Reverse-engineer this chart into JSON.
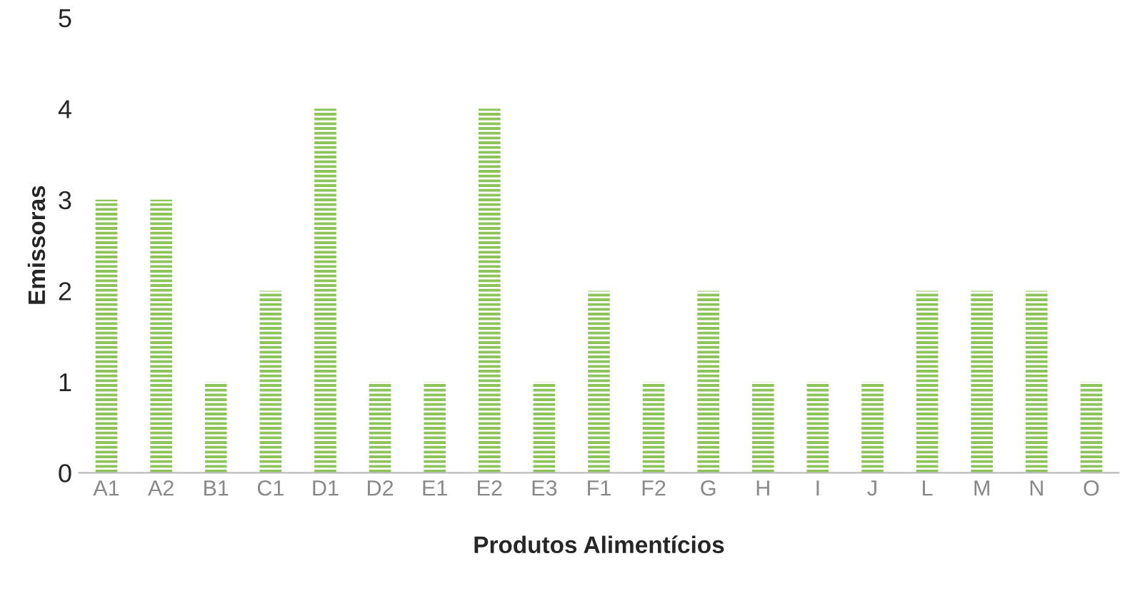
{
  "chart_data": {
    "type": "bar",
    "xlabel": "Produtos Alimentícios",
    "ylabel": "Emissoras",
    "categories": [
      "A1",
      "A2",
      "B1",
      "C1",
      "D1",
      "D2",
      "E1",
      "E2",
      "E3",
      "F1",
      "F2",
      "G",
      "H",
      "I",
      "J",
      "L",
      "M",
      "N",
      "O"
    ],
    "values": [
      3,
      3,
      1,
      2,
      4,
      1,
      1,
      4,
      1,
      2,
      1,
      2,
      1,
      1,
      1,
      2,
      2,
      2,
      1
    ],
    "color": "#8cc45a",
    "ylim": [
      0,
      5
    ],
    "yticks": [
      0,
      1,
      2,
      3,
      4,
      5
    ],
    "grid": false,
    "legend": false
  }
}
